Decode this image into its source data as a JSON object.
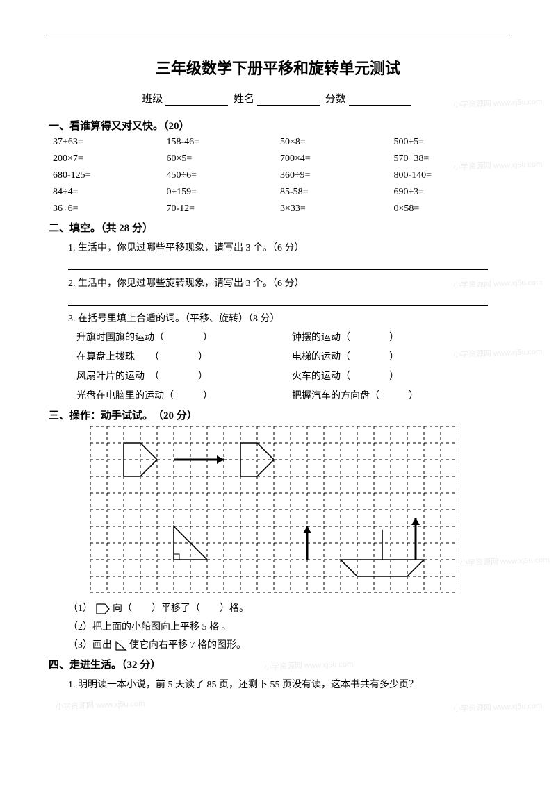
{
  "title": "三年级数学下册平移和旋转单元测试",
  "header": {
    "class_label": "班级",
    "name_label": "姓名",
    "score_label": "分数"
  },
  "section1": {
    "heading": "一、看谁算得又对又快。（20）",
    "rows": [
      [
        "37+63=",
        "158-46=",
        "50×8=",
        "500÷5="
      ],
      [
        "200×7=",
        "60×5=",
        "700×4=",
        "570+38="
      ],
      [
        "680-125=",
        "450÷6=",
        "360÷9=",
        "800-140="
      ],
      [
        "84÷4=",
        "0÷159=",
        "85-58=",
        "690÷3="
      ],
      [
        "36÷6=",
        "70-12=",
        "3×33=",
        "0×58="
      ]
    ]
  },
  "section2": {
    "heading": "二、填空。（共 28 分）",
    "q1": "1. 生活中，你见过哪些平移现象，请写出 3 个。（6 分）",
    "q2": "2. 生活中，你见过哪些旋转现象，请写出 3 个。（6 分）",
    "q3": "3. 在括号里填上合适的词。（平移、旋转）（8 分）",
    "q3_pairs": [
      [
        "升旗时国旗的运动（　　　　）",
        "钟摆的运动（　　　　）"
      ],
      [
        "在算盘上拨珠　　（　　　　）",
        "电梯的运动（　　　　）"
      ],
      [
        "风扇叶片的运动　（　　　　）",
        "火车的运动（　　　　）"
      ],
      [
        "光盘在电脑里的运动（　　　）",
        "把握汽车的方向盘（　　　）"
      ]
    ]
  },
  "section3": {
    "heading": "三、操作：动手试试。　（20 分）",
    "grid": {
      "cols": 22,
      "rows": 10,
      "cell": 24,
      "stroke": "#000000",
      "dash": "4,4"
    },
    "sub1_a": "（1）",
    "sub1_b": "向（　　）平移了（　　）格。",
    "sub2": "（2）把上面的小船图向上平移 5 格 。",
    "sub3_a": "（3）画出",
    "sub3_b": "使它向右平移 7 格的图形。"
  },
  "section4": {
    "heading": "四、走进生活。（32 分）",
    "q1": "1. 明明读一本小说，前 5 天读了 85 页，还剩下 55 页没有读，这本书共有多少页？"
  },
  "watermark_text": "小学资源网  www.xj5u.com"
}
